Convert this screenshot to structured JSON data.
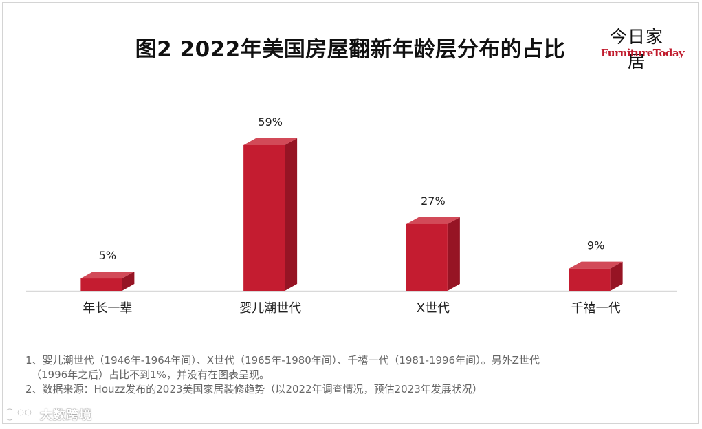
{
  "title": "图2 2022年美国房屋翻新年龄层分布的占比",
  "brand": {
    "cn": "今日家居",
    "en": "FurnitureToday"
  },
  "colors": {
    "bar_front": "#c41c30",
    "bar_top": "#d24a58",
    "bar_side": "#961424",
    "axis": "#d9d9d9"
  },
  "chart_data": {
    "type": "bar",
    "categories": [
      "年长一辈",
      "婴儿潮世代",
      "X世代",
      "千禧一代"
    ],
    "values": [
      5,
      59,
      27,
      9
    ],
    "value_labels": [
      "5%",
      "59%",
      "27%",
      "9%"
    ],
    "unit": "%",
    "ylim": [
      0,
      59
    ],
    "grid": false,
    "style": "3d-column"
  },
  "notes": {
    "line1": "1、婴儿潮世代（1946年-1964年间）、X世代（1965年-1980年间）、千禧一代（1981-1996年间）。另外Z世代",
    "line2": "（1996年之后）占比不到1%，并没有在图表呈现。",
    "line3": "2、数据来源：Houzz发布的2023美国家居装修趋势（以2022年调查情况，预估2023年发展状况）"
  },
  "watermark": {
    "text": "大数跨境",
    "icon": "brand-logo-icon"
  }
}
